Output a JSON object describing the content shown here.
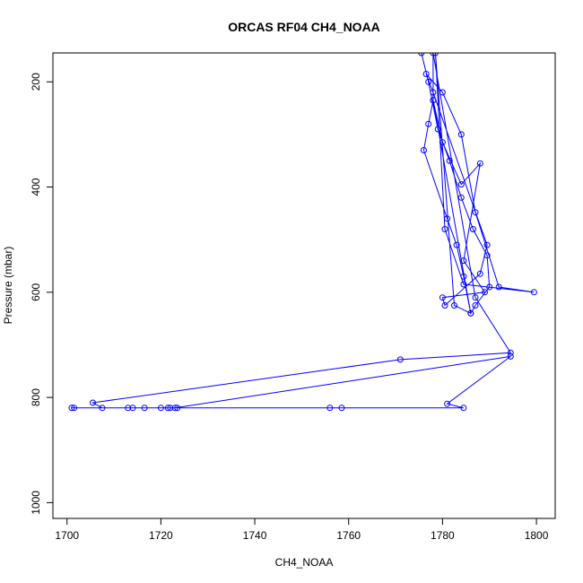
{
  "chart_data": {
    "type": "line",
    "title": "ORCAS RF04 CH4_NOAA",
    "xlabel": "CH4_NOAA",
    "ylabel": "Pressure (mbar)",
    "xlim": [
      1697,
      1804
    ],
    "ylim": [
      1030,
      145
    ],
    "y_reversed": true,
    "xticks": [
      1700,
      1720,
      1740,
      1760,
      1780,
      1800
    ],
    "yticks": [
      200,
      400,
      600,
      800,
      1000
    ],
    "grid": false,
    "legend": "none",
    "series_color": "#0000ff",
    "marker": "open-circle",
    "series": [
      {
        "x": [
          1775.5,
          1777.0,
          1779.0,
          1781.5,
          1784.0,
          1786.5,
          1789.5,
          1790.0,
          1787.0,
          1786.0,
          1784.5,
          1783.0,
          1781.0,
          1776.0,
          1777.0,
          1778.0,
          1780.0,
          1784.0,
          1788.0,
          1784.5,
          1789.0,
          1780.0,
          1780.5,
          1788.0,
          1789.5,
          1778.0,
          1776.5,
          1780.0,
          1784.0,
          1787.0,
          1792.0,
          1799.5,
          1784.5,
          1780.5,
          1778.5,
          1782.5,
          1786.0,
          1778.0,
          1778.0,
          1787.0,
          1794.5,
          1771.0,
          1705.5,
          1707.5,
          1713.0,
          1714.0,
          1716.5,
          1720.0,
          1721.5,
          1723.5,
          1701.0,
          1701.5,
          1756.0,
          1758.5,
          1723.0,
          1794.5,
          1781.0,
          1784.5,
          1722.0
        ],
        "y": [
          145,
          200,
          290,
          350,
          420,
          480,
          530,
          590,
          625,
          640,
          570,
          510,
          460,
          330,
          280,
          235,
          315,
          395,
          355,
          540,
          600,
          610,
          625,
          565,
          510,
          220,
          185,
          220,
          300,
          448,
          590,
          600,
          585,
          480,
          145,
          625,
          640,
          235,
          145,
          610,
          715,
          728,
          810,
          820,
          820,
          820,
          820,
          820,
          820,
          820,
          820,
          820,
          820,
          820,
          820,
          722,
          812,
          820,
          820
        ]
      }
    ]
  }
}
